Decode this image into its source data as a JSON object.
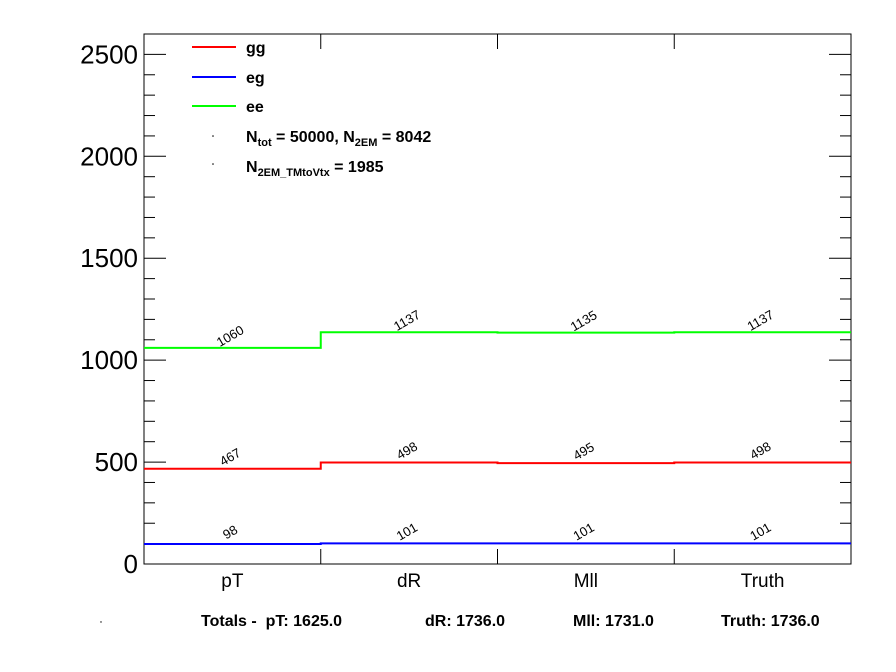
{
  "chart_data": {
    "type": "line",
    "categories": [
      "pT",
      "dR",
      "Mll",
      "Truth"
    ],
    "y_ticks": [
      "0",
      "500",
      "1000",
      "1500",
      "2000",
      "2500"
    ],
    "ylim": [
      0,
      2600
    ],
    "series": [
      {
        "name": "gg",
        "color": "#ff0000",
        "values": [
          467,
          498,
          495,
          498
        ],
        "labels": [
          "467",
          "498",
          "495",
          "498"
        ]
      },
      {
        "name": "eg",
        "color": "#0000ff",
        "values": [
          98,
          101,
          101,
          101
        ],
        "labels": [
          "98",
          "101",
          "101",
          "101"
        ]
      },
      {
        "name": "ee",
        "color": "#00ff00",
        "values": [
          1060,
          1137,
          1135,
          1137
        ],
        "labels": [
          "1060",
          "1137",
          "1135",
          "1137"
        ]
      }
    ],
    "annotations": {
      "ntot_prefix": "N",
      "ntot_sub": "tot",
      "ntot_mid": " = 50000, N",
      "n2em_sub": "2EM",
      "n2em_val": " = 8042",
      "n2em_vtx_prefix": "N",
      "n2em_vtx_sub": "2EM_TMtoVtx",
      "n2em_vtx_val": "  = 1985"
    },
    "grid": false,
    "legend_position": "top-left"
  },
  "footer": {
    "prefix": "Totals -  pT: 1625.0",
    "dr": "dR: 1736.0",
    "mll": "Mll: 1731.0",
    "truth": "Truth: 1736.0"
  }
}
